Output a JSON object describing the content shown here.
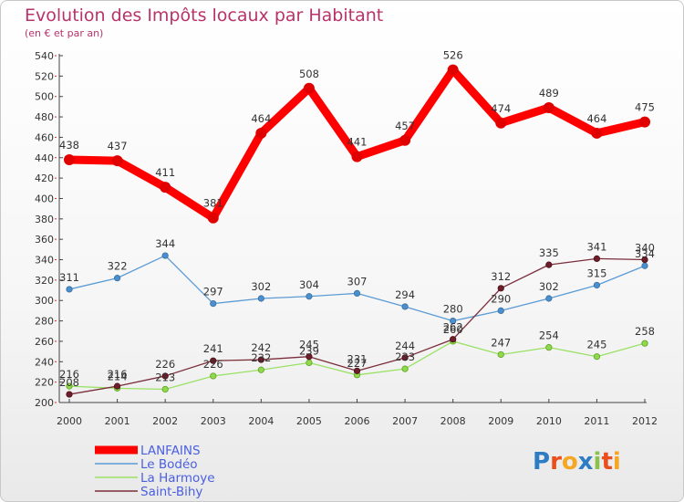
{
  "chart_data": {
    "type": "line",
    "title": "Evolution des Impôts locaux par Habitant",
    "subtitle": "(en € et par an)",
    "xlabel": "",
    "ylabel": "",
    "ylim": [
      200,
      540
    ],
    "yticks": [
      "200",
      "220",
      "240",
      "260",
      "280",
      "300",
      "320",
      "340",
      "360",
      "380",
      "400",
      "420",
      "440",
      "460",
      "480",
      "500",
      "520",
      "540"
    ],
    "categories": [
      "2000",
      "2001",
      "2002",
      "2003",
      "2004",
      "2005",
      "2006",
      "2007",
      "2008",
      "2009",
      "2010",
      "2011",
      "2012"
    ],
    "series": [
      {
        "name": "LANFAINS",
        "color": "#ff0000",
        "values": [
          438,
          437,
          411,
          381,
          464,
          508,
          441,
          457,
          526,
          474,
          489,
          464,
          475
        ],
        "labels": [
          "438",
          "437",
          "411",
          "381",
          "464",
          "508",
          "441",
          "457",
          "526",
          "474",
          "489",
          "464",
          "475"
        ]
      },
      {
        "name": "Le Bodéo",
        "color": "#5b9bd5",
        "values": [
          311,
          322,
          344,
          297,
          302,
          304,
          307,
          294,
          280,
          290,
          302,
          315,
          334
        ],
        "labels": [
          "311",
          "322",
          "344",
          "297",
          "302",
          "304",
          "307",
          "294",
          "280",
          "290",
          "302",
          "315",
          "334"
        ]
      },
      {
        "name": "La Harmoye",
        "color": "#99e265",
        "values": [
          216,
          214,
          213,
          226,
          232,
          239,
          227,
          233,
          260,
          247,
          254,
          245,
          258
        ],
        "labels": [
          "216",
          "214",
          "213",
          "226",
          "232",
          "239",
          "227",
          "233",
          "260",
          "247",
          "254",
          "245",
          "258"
        ]
      },
      {
        "name": "Saint-Bihy",
        "color": "#7a2e3a",
        "values": [
          208,
          216,
          226,
          241,
          242,
          245,
          231,
          244,
          262,
          312,
          335,
          341,
          340
        ],
        "labels": [
          "208",
          "216",
          "226",
          "241",
          "242",
          "245",
          "231",
          "244",
          "262",
          "312",
          "335",
          "341",
          "340"
        ]
      }
    ],
    "legend_position": "bottom-left",
    "grid": false
  },
  "logo": {
    "letters": [
      "P",
      "r",
      "o",
      "x",
      "i",
      "t",
      "i"
    ],
    "colors": [
      "#2e7cc4",
      "#e94e1b",
      "#f5a623",
      "#2e7cc4",
      "#8bc34a",
      "#e94e1b",
      "#f5a623"
    ]
  }
}
